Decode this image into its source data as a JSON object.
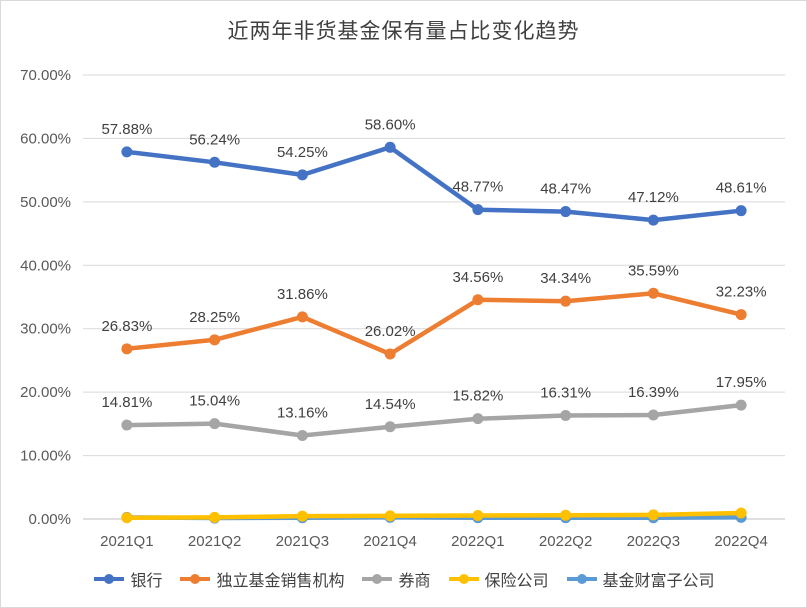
{
  "chart_data": {
    "type": "line",
    "title": "近两年非货基金保有量占比变化趋势",
    "categories": [
      "2021Q1",
      "2021Q2",
      "2021Q3",
      "2021Q4",
      "2022Q1",
      "2022Q2",
      "2022Q3",
      "2022Q4"
    ],
    "ylim": [
      0,
      70
    ],
    "yticks": [
      "0.00%",
      "10.00%",
      "20.00%",
      "30.00%",
      "40.00%",
      "50.00%",
      "60.00%",
      "70.00%"
    ],
    "grid": true,
    "legend_position": "bottom",
    "series": [
      {
        "name": "银行",
        "color": "#4472c4",
        "show_labels": true,
        "values": [
          57.88,
          56.24,
          54.25,
          58.6,
          48.77,
          48.47,
          47.12,
          48.61
        ],
        "labels": [
          "57.88%",
          "56.24%",
          "54.25%",
          "58.60%",
          "48.77%",
          "48.47%",
          "47.12%",
          "48.61%"
        ]
      },
      {
        "name": "独立基金销售机构",
        "color": "#ed7d31",
        "show_labels": true,
        "values": [
          26.83,
          28.25,
          31.86,
          26.02,
          34.56,
          34.34,
          35.59,
          32.23
        ],
        "labels": [
          "26.83%",
          "28.25%",
          "31.86%",
          "26.02%",
          "34.56%",
          "34.34%",
          "35.59%",
          "32.23%"
        ]
      },
      {
        "name": "券商",
        "color": "#a5a5a5",
        "show_labels": true,
        "values": [
          14.81,
          15.04,
          13.16,
          14.54,
          15.82,
          16.31,
          16.39,
          17.95
        ],
        "labels": [
          "14.81%",
          "15.04%",
          "13.16%",
          "14.54%",
          "15.82%",
          "16.31%",
          "16.39%",
          "17.95%"
        ]
      },
      {
        "name": "保险公司",
        "color": "#ffc000",
        "show_labels": false,
        "values": [
          0.2,
          0.25,
          0.45,
          0.5,
          0.55,
          0.6,
          0.65,
          0.95
        ]
      },
      {
        "name": "基金财富子公司",
        "color": "#5b9bd5",
        "show_labels": false,
        "values": [
          0.25,
          0.15,
          0.2,
          0.25,
          0.2,
          0.2,
          0.2,
          0.25
        ]
      }
    ]
  }
}
